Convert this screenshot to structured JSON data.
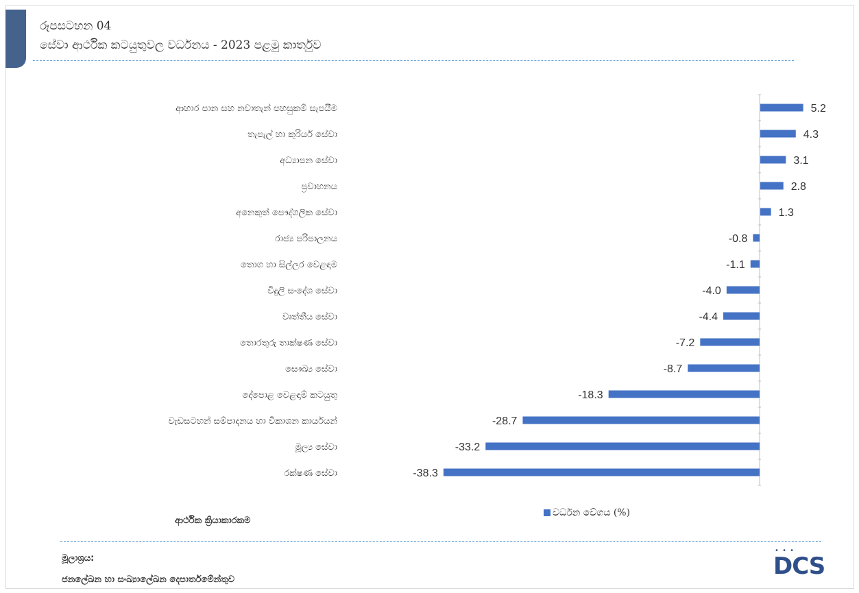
{
  "figure": {
    "label": "රූපසටහන 04",
    "title": "සේවා ආර්ථික කටයුතුවල වර්ධනය - 2023 පළමු කාර්තුව"
  },
  "colors": {
    "bar": "#4472c4",
    "accent": "#44628c",
    "dash": "#5b9bd5"
  },
  "chart_data": {
    "type": "bar",
    "orientation": "horizontal",
    "categories": [
      "ආහාර පාන සහ නවාතැන් පහසුකම් සැපයීම",
      "තැපැල් හා කුරියර් සේවා",
      "අධ්‍යාපන සේවා",
      "ප්‍රවාහනය",
      "අනෙකුත් පෞද්ගලික සේවා",
      "රාජ්‍ය පරිපාලනය",
      "තොග හා සිල්ලර වෙළඳාම",
      "විදුලි සංදේශ සේවා",
      "වෘත්තීය සේවා",
      "තොරතුරු තාක්ෂණ සේවා",
      "සෞඛ්‍ය සේවා",
      "දේපොළ වෙළඳාම් කටයුතු",
      "වැඩසටහන් සම්පාදනය හා විකාශන කාර්යයන්",
      "මූල්‍ය සේවා",
      "රක්ෂණ සේවා"
    ],
    "series": [
      {
        "name": "වර්ධන වේගය (%)",
        "values": [
          5.2,
          4.3,
          3.1,
          2.8,
          1.3,
          -0.8,
          -1.1,
          -4.0,
          -4.4,
          -7.2,
          -8.7,
          -18.3,
          -28.7,
          -33.2,
          -38.3
        ]
      }
    ],
    "value_labels": [
      "5.2",
      "4.3",
      "3.1",
      "2.8",
      "1.3",
      "-0.8",
      "-1.1",
      "-4.0",
      "-4.4",
      "-7.2",
      "-8.7",
      "-18.3",
      "-28.7",
      "-33.2",
      "-38.3"
    ],
    "xlim": [
      -40,
      6
    ],
    "category_axis_label": "ආර්ථික ක්‍රියාකාරකම",
    "legend_position": "bottom",
    "grid": false
  },
  "source": {
    "label": "මූලාශ්‍රය:",
    "text": "ජනලේඛන හා සංඛ්‍යාලේඛන දෙපාර්තමේන්තුව"
  },
  "logo": {
    "text": "DCS",
    "icon": "dcs-logo-icon"
  }
}
